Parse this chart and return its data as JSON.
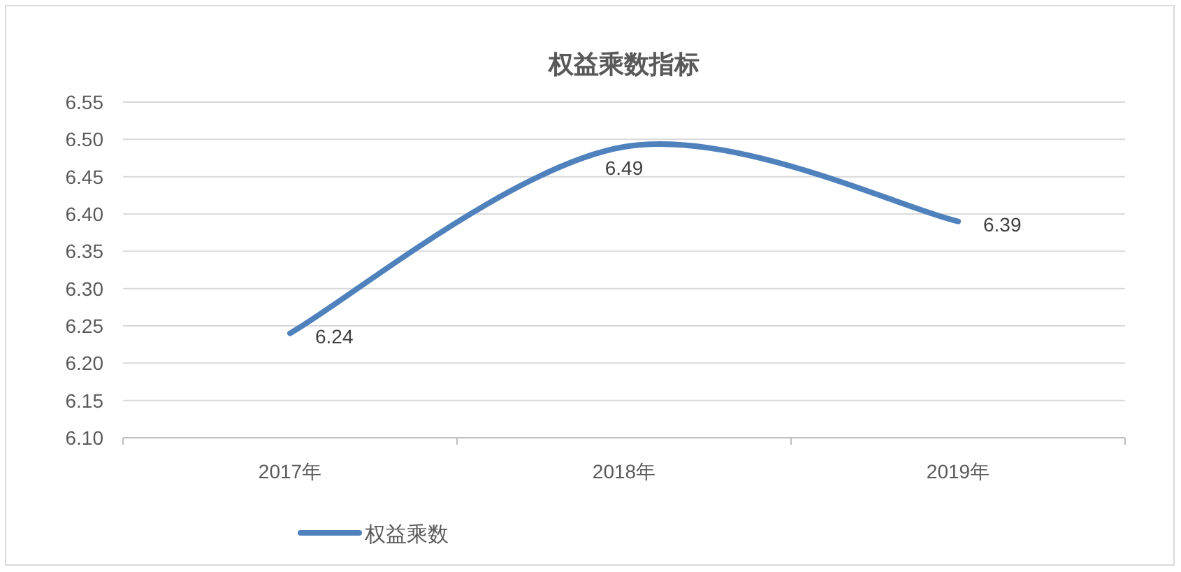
{
  "chart_data": {
    "type": "line",
    "title": "权益乘数指标",
    "categories": [
      "2017年",
      "2018年",
      "2019年"
    ],
    "series": [
      {
        "name": "权益乘数",
        "color": "#4f81bd",
        "values": [
          6.24,
          6.49,
          6.39
        ]
      }
    ],
    "ylim": [
      6.1,
      6.55
    ],
    "yticks": [
      {
        "value": 6.1,
        "label": "6.10"
      },
      {
        "value": 6.15,
        "label": "6.15"
      },
      {
        "value": 6.2,
        "label": "6.20"
      },
      {
        "value": 6.25,
        "label": "6.25"
      },
      {
        "value": 6.3,
        "label": "6.30"
      },
      {
        "value": 6.35,
        "label": "6.35"
      },
      {
        "value": 6.4,
        "label": "6.40"
      },
      {
        "value": 6.45,
        "label": "6.45"
      },
      {
        "value": 6.5,
        "label": "6.50"
      },
      {
        "value": 6.55,
        "label": "6.55"
      }
    ],
    "grid": "y",
    "legend": "bottom",
    "data_labels": true,
    "marker": "none",
    "line_style": "solid"
  }
}
